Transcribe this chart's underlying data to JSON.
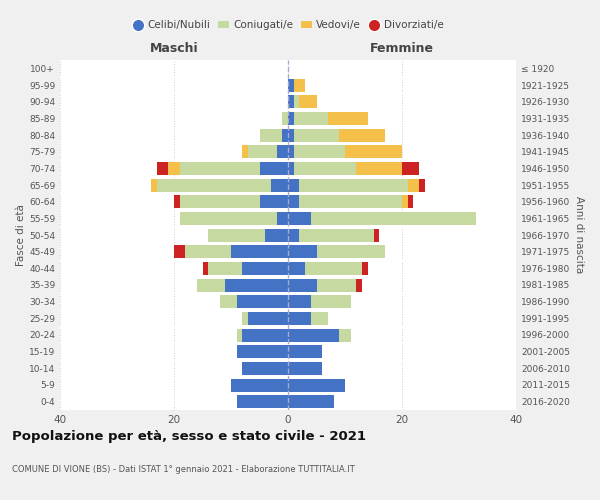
{
  "age_groups": [
    "0-4",
    "5-9",
    "10-14",
    "15-19",
    "20-24",
    "25-29",
    "30-34",
    "35-39",
    "40-44",
    "45-49",
    "50-54",
    "55-59",
    "60-64",
    "65-69",
    "70-74",
    "75-79",
    "80-84",
    "85-89",
    "90-94",
    "95-99",
    "100+"
  ],
  "birth_years": [
    "2016-2020",
    "2011-2015",
    "2006-2010",
    "2001-2005",
    "1996-2000",
    "1991-1995",
    "1986-1990",
    "1981-1985",
    "1976-1980",
    "1971-1975",
    "1966-1970",
    "1961-1965",
    "1956-1960",
    "1951-1955",
    "1946-1950",
    "1941-1945",
    "1936-1940",
    "1931-1935",
    "1926-1930",
    "1921-1925",
    "≤ 1920"
  ],
  "colors": {
    "celibe": "#4472c4",
    "coniugato": "#c5d9a0",
    "vedovo": "#f5c04a",
    "divorziato": "#cc2222"
  },
  "maschi": {
    "celibe": [
      9,
      10,
      8,
      9,
      8,
      7,
      9,
      11,
      8,
      10,
      4,
      2,
      5,
      3,
      5,
      2,
      1,
      0,
      0,
      0,
      0
    ],
    "coniugato": [
      0,
      0,
      0,
      0,
      1,
      1,
      3,
      5,
      6,
      8,
      10,
      17,
      14,
      20,
      14,
      5,
      4,
      1,
      0,
      0,
      0
    ],
    "vedovo": [
      0,
      0,
      0,
      0,
      0,
      0,
      0,
      0,
      0,
      0,
      0,
      0,
      0,
      1,
      2,
      1,
      0,
      0,
      0,
      0,
      0
    ],
    "divorziato": [
      0,
      0,
      0,
      0,
      0,
      0,
      0,
      0,
      1,
      2,
      0,
      0,
      1,
      0,
      2,
      0,
      0,
      0,
      0,
      0,
      0
    ]
  },
  "femmine": {
    "nubile": [
      8,
      10,
      6,
      6,
      9,
      4,
      4,
      5,
      3,
      5,
      2,
      4,
      2,
      2,
      1,
      1,
      1,
      1,
      1,
      1,
      0
    ],
    "coniugata": [
      0,
      0,
      0,
      0,
      2,
      3,
      7,
      7,
      10,
      12,
      13,
      29,
      18,
      19,
      11,
      9,
      8,
      6,
      1,
      0,
      0
    ],
    "vedova": [
      0,
      0,
      0,
      0,
      0,
      0,
      0,
      0,
      0,
      0,
      0,
      0,
      1,
      2,
      8,
      10,
      8,
      7,
      3,
      2,
      0
    ],
    "divorziata": [
      0,
      0,
      0,
      0,
      0,
      0,
      0,
      1,
      1,
      0,
      1,
      0,
      1,
      1,
      3,
      0,
      0,
      0,
      0,
      0,
      0
    ]
  },
  "title": "Popolazione per età, sesso e stato civile - 2021",
  "subtitle": "COMUNE DI VIONE (BS) - Dati ISTAT 1° gennaio 2021 - Elaborazione TUTTITALIA.IT",
  "xlabel_left": "Maschi",
  "xlabel_right": "Femmine",
  "ylabel_left": "Fasce di età",
  "ylabel_right": "Anni di nascita",
  "xlim": 40,
  "bg_color": "#f0f0f0",
  "plot_bg": "#ffffff",
  "legend_labels": [
    "Celibi/Nubili",
    "Coniugati/e",
    "Vedovi/e",
    "Divorziati/e"
  ]
}
